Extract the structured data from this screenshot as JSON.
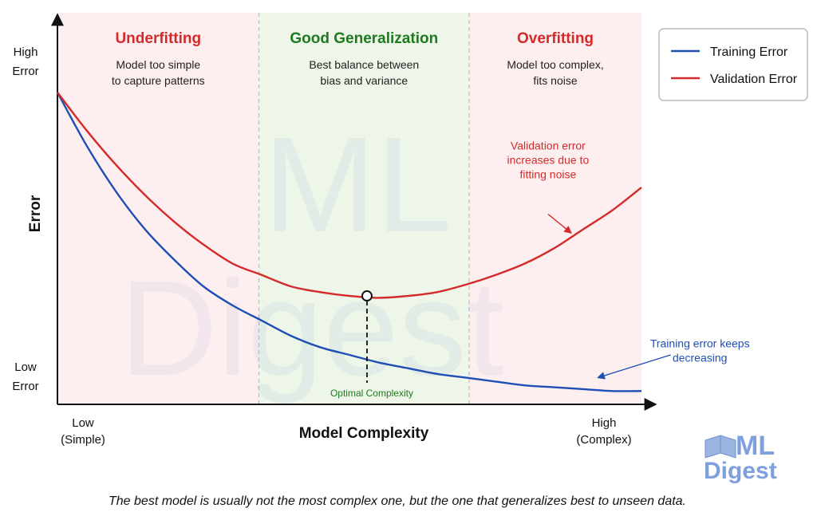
{
  "chart_data": {
    "type": "line",
    "ylabel": "Error",
    "xlabel": "Model Complexity",
    "x_axis_ends": {
      "low": [
        "Low",
        "(Simple)"
      ],
      "high": [
        "High",
        "(Complex)"
      ]
    },
    "y_axis_ends": {
      "high": [
        "High",
        "Error"
      ],
      "low": [
        "Low",
        "Error"
      ]
    },
    "xlim": [
      0,
      1
    ],
    "ylim": [
      0,
      1
    ],
    "x": [
      0,
      0.05,
      0.1,
      0.15,
      0.2,
      0.25,
      0.3,
      0.35,
      0.4,
      0.45,
      0.5,
      0.55,
      0.6,
      0.65,
      0.7,
      0.75,
      0.8,
      0.85,
      0.9,
      0.95,
      1.0
    ],
    "series": [
      {
        "name": "Training Error",
        "color": "#1f4fb5",
        "values": [
          0.82,
          0.68,
          0.56,
          0.46,
          0.38,
          0.31,
          0.26,
          0.22,
          0.18,
          0.15,
          0.13,
          0.11,
          0.095,
          0.08,
          0.07,
          0.06,
          0.05,
          0.045,
          0.04,
          0.035,
          0.035
        ]
      },
      {
        "name": "Validation Error",
        "color": "#d42a2a",
        "values": [
          0.82,
          0.72,
          0.63,
          0.55,
          0.48,
          0.42,
          0.37,
          0.34,
          0.31,
          0.295,
          0.285,
          0.28,
          0.285,
          0.295,
          0.315,
          0.34,
          0.37,
          0.41,
          0.46,
          0.51,
          0.57
        ]
      }
    ],
    "regions": [
      {
        "x_start": 0,
        "x_end": 0.345,
        "title": "Underfitting",
        "title_color": "#d42a2a",
        "fill": "#fdeff0",
        "desc": [
          "Model too simple",
          "to capture patterns"
        ]
      },
      {
        "x_start": 0.345,
        "x_end": 0.705,
        "title": "Good Generalization",
        "title_color": "#1f7a1f",
        "fill": "#eef6e9",
        "desc": [
          "Best balance between",
          "bias and variance"
        ]
      },
      {
        "x_start": 0.705,
        "x_end": 1.0,
        "title": "Overfitting",
        "title_color": "#d42a2a",
        "fill": "#fdeff0",
        "desc": [
          "Model too complex,",
          "fits noise"
        ]
      }
    ],
    "optimal": {
      "x": 0.53,
      "y": 0.285,
      "label": "Optimal Complexity",
      "label_color": "#1f7a1f"
    },
    "annotations": [
      {
        "lines": [
          "Validation error",
          "increases due to",
          "fitting noise"
        ],
        "color": "#d42a2a",
        "text_x": 0.84,
        "text_y": 0.67,
        "arrow_from": [
          0.84,
          0.5
        ],
        "arrow_to": [
          0.88,
          0.45
        ]
      },
      {
        "lines": [
          "Training error keeps",
          "decreasing"
        ],
        "color": "#1f4fb5",
        "text_x": 1.1,
        "text_y": 0.15,
        "arrow_from": [
          1.05,
          0.13
        ],
        "arrow_to": [
          0.925,
          0.07
        ]
      }
    ],
    "legend_position": "top-right",
    "grid": false
  },
  "caption": "The best model is usually not the most complex one, but the one that generalizes best to unseen data.",
  "logo_text": [
    "ML",
    "Digest"
  ]
}
